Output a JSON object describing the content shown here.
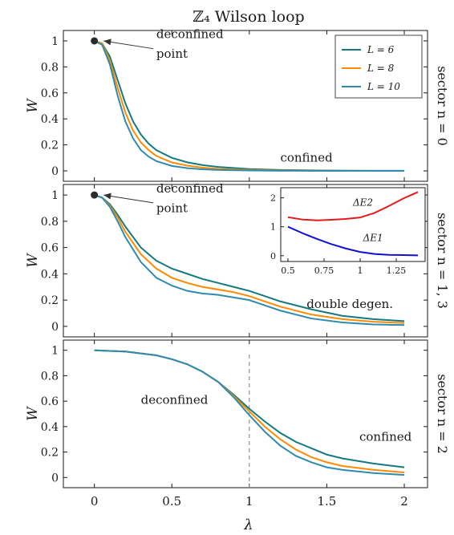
{
  "figure_title": "ℤ₄ Wilson loop",
  "x_axis_label": "λ",
  "legend": {
    "entries": [
      {
        "label": "L = 6",
        "color": "#137a7f"
      },
      {
        "label": "L = 8",
        "color": "#ff8a00"
      },
      {
        "label": "L = 10",
        "color": "#2d8bb0"
      }
    ]
  },
  "chart_data": [
    {
      "type": "line",
      "ylabel": "W",
      "right_label": "sector n = 0",
      "xlim": [
        -0.2,
        2.15
      ],
      "ylim": [
        -0.08,
        1.08
      ],
      "xticks": [
        0,
        0.5,
        1,
        1.5,
        2
      ],
      "yticks": [
        0,
        0.2,
        0.4,
        0.6,
        0.8,
        1
      ],
      "x": [
        0,
        0.05,
        0.1,
        0.15,
        0.2,
        0.25,
        0.3,
        0.35,
        0.4,
        0.5,
        0.6,
        0.7,
        0.8,
        1.0,
        1.2,
        1.4,
        1.6,
        1.8,
        2.0
      ],
      "series": [
        {
          "name": "L = 6",
          "color": "#137a7f",
          "values": [
            1,
            0.98,
            0.88,
            0.7,
            0.52,
            0.38,
            0.28,
            0.21,
            0.16,
            0.1,
            0.066,
            0.044,
            0.03,
            0.014,
            0.007,
            0.004,
            0.002,
            0.001,
            0.001
          ]
        },
        {
          "name": "L = 8",
          "color": "#ff8a00",
          "values": [
            1,
            0.98,
            0.85,
            0.64,
            0.45,
            0.31,
            0.22,
            0.16,
            0.115,
            0.065,
            0.04,
            0.025,
            0.016,
            0.007,
            0.003,
            0.002,
            0.001,
            0.0005,
            0
          ]
        },
        {
          "name": "L = 10",
          "color": "#2d8bb0",
          "values": [
            1,
            0.97,
            0.82,
            0.58,
            0.38,
            0.25,
            0.16,
            0.11,
            0.075,
            0.038,
            0.021,
            0.012,
            0.007,
            0.003,
            0.001,
            0.0005,
            0,
            0,
            0
          ]
        }
      ],
      "marker": {
        "x": 0,
        "y": 1
      },
      "annotations": [
        {
          "text": "deconfined",
          "x": 0.4,
          "y": 1.02
        },
        {
          "text": "point",
          "x": 0.4,
          "y": 0.87
        },
        {
          "text": "confined",
          "x": 1.2,
          "y": 0.07
        }
      ],
      "arrow": {
        "from": [
          0.38,
          0.94
        ],
        "to": [
          0.06,
          1.0
        ]
      }
    },
    {
      "type": "line",
      "ylabel": "W",
      "right_label": "sector n = 1, 3",
      "xlim": [
        -0.2,
        2.15
      ],
      "ylim": [
        -0.08,
        1.08
      ],
      "xticks": [
        0,
        0.5,
        1,
        1.5,
        2
      ],
      "yticks": [
        0,
        0.2,
        0.4,
        0.6,
        0.8,
        1
      ],
      "x": [
        0,
        0.05,
        0.1,
        0.15,
        0.2,
        0.3,
        0.4,
        0.5,
        0.6,
        0.7,
        0.8,
        0.9,
        1.0,
        1.1,
        1.2,
        1.4,
        1.6,
        1.8,
        2.0
      ],
      "series": [
        {
          "name": "L = 6",
          "color": "#137a7f",
          "values": [
            1,
            0.98,
            0.93,
            0.85,
            0.76,
            0.6,
            0.5,
            0.44,
            0.4,
            0.36,
            0.33,
            0.3,
            0.27,
            0.23,
            0.19,
            0.13,
            0.08,
            0.055,
            0.04
          ]
        },
        {
          "name": "L = 8",
          "color": "#ff8a00",
          "values": [
            1,
            0.98,
            0.92,
            0.83,
            0.72,
            0.55,
            0.44,
            0.37,
            0.33,
            0.3,
            0.28,
            0.26,
            0.23,
            0.19,
            0.15,
            0.09,
            0.055,
            0.035,
            0.025
          ]
        },
        {
          "name": "L = 10",
          "color": "#2d8bb0",
          "values": [
            1,
            0.98,
            0.91,
            0.8,
            0.68,
            0.49,
            0.37,
            0.31,
            0.27,
            0.25,
            0.24,
            0.22,
            0.2,
            0.16,
            0.12,
            0.06,
            0.03,
            0.015,
            0.01
          ]
        }
      ],
      "marker": {
        "x": 0,
        "y": 1
      },
      "annotations": [
        {
          "text": "deconfined",
          "x": 0.4,
          "y": 1.02
        },
        {
          "text": "point",
          "x": 0.4,
          "y": 0.87
        },
        {
          "text": "double degen.",
          "x": 1.37,
          "y": 0.14
        }
      ],
      "arrow": {
        "from": [
          0.38,
          0.94
        ],
        "to": [
          0.06,
          1.0
        ]
      },
      "inset": {
        "type": "line",
        "xlim": [
          0.45,
          1.45
        ],
        "ylim": [
          -0.2,
          2.35
        ],
        "xticks": [
          0.5,
          0.75,
          1,
          1.25
        ],
        "xtick_labels": [
          "0.5",
          "0.75",
          "1",
          "1.25"
        ],
        "yticks": [
          0,
          1,
          2
        ],
        "x": [
          0.5,
          0.6,
          0.7,
          0.8,
          0.9,
          1.0,
          1.1,
          1.2,
          1.3,
          1.4
        ],
        "series": [
          {
            "name": "ΔE2",
            "color": "#e41a1c",
            "values": [
              1.33,
              1.25,
              1.22,
              1.24,
              1.27,
              1.32,
              1.48,
              1.72,
              1.98,
              2.2
            ]
          },
          {
            "name": "ΔE1",
            "color": "#1010d6",
            "values": [
              1.0,
              0.78,
              0.58,
              0.4,
              0.25,
              0.13,
              0.06,
              0.03,
              0.02,
              0.01
            ]
          }
        ],
        "labels": [
          {
            "text": "ΔE2",
            "x": 0.95,
            "y": 1.72
          },
          {
            "text": "ΔE1",
            "x": 1.02,
            "y": 0.5
          }
        ]
      }
    },
    {
      "type": "line",
      "ylabel": "W",
      "right_label": "sector n = 2",
      "xlim": [
        -0.2,
        2.15
      ],
      "ylim": [
        -0.08,
        1.08
      ],
      "xticks": [
        0,
        0.5,
        1,
        1.5,
        2
      ],
      "xtick_labels": [
        "0",
        "0.5",
        "1",
        "1.5",
        "2"
      ],
      "yticks": [
        0,
        0.2,
        0.4,
        0.6,
        0.8,
        1
      ],
      "x": [
        0,
        0.2,
        0.4,
        0.5,
        0.6,
        0.7,
        0.8,
        0.9,
        1.0,
        1.1,
        1.2,
        1.3,
        1.4,
        1.5,
        1.6,
        1.8,
        2.0
      ],
      "series": [
        {
          "name": "L = 6",
          "color": "#137a7f",
          "values": [
            1,
            0.99,
            0.96,
            0.93,
            0.89,
            0.83,
            0.75,
            0.65,
            0.54,
            0.44,
            0.35,
            0.28,
            0.23,
            0.18,
            0.15,
            0.11,
            0.08
          ]
        },
        {
          "name": "L = 8",
          "color": "#ff8a00",
          "values": [
            1,
            0.99,
            0.96,
            0.93,
            0.89,
            0.83,
            0.75,
            0.64,
            0.52,
            0.4,
            0.3,
            0.22,
            0.16,
            0.12,
            0.09,
            0.06,
            0.04
          ]
        },
        {
          "name": "L = 10",
          "color": "#2d8bb0",
          "values": [
            1,
            0.99,
            0.96,
            0.93,
            0.89,
            0.83,
            0.75,
            0.63,
            0.49,
            0.36,
            0.25,
            0.17,
            0.12,
            0.08,
            0.06,
            0.035,
            0.02
          ]
        }
      ],
      "vline": {
        "x": 1
      },
      "annotations": [
        {
          "text": "deconfined",
          "x": 0.3,
          "y": 0.58
        },
        {
          "text": "confined",
          "x": 1.71,
          "y": 0.29
        }
      ]
    }
  ]
}
